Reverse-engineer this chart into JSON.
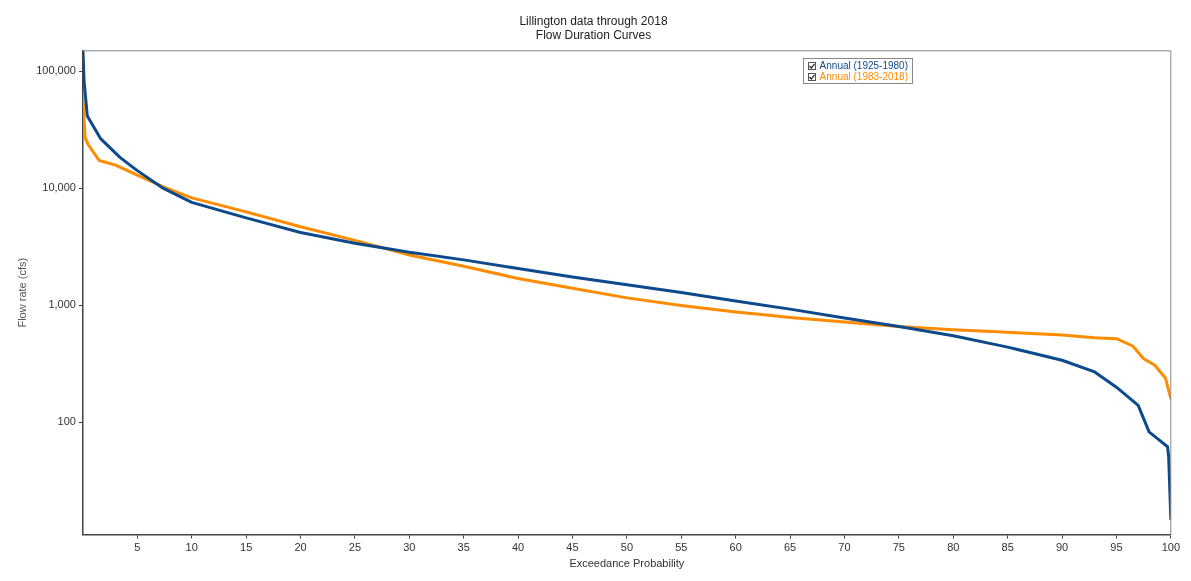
{
  "chart_data": {
    "type": "line",
    "title": "Lillington data through 2018",
    "subtitle": "Flow Duration Curves",
    "xlabel": "Exceedance Probability",
    "ylabel": "Flow rate (cfs)",
    "log": "y",
    "grid": false,
    "legend": "top right",
    "marker": "none",
    "line_style": "solid",
    "xlim": [
      0,
      100
    ],
    "xticks": [
      5,
      10,
      15,
      20,
      25,
      30,
      35,
      40,
      45,
      50,
      55,
      60,
      65,
      70,
      75,
      80,
      85,
      90,
      95,
      100
    ],
    "ylim": [
      11,
      150000
    ],
    "yticks": [
      {
        "value": 100,
        "label": "100"
      },
      {
        "value": 1000,
        "label": "1,000"
      },
      {
        "value": 10000,
        "label": "10,000"
      },
      {
        "value": 100000,
        "label": "100,000"
      }
    ],
    "series": [
      {
        "name": "Annual (1925-1980)",
        "color": "#0d4a8c",
        "x": [
          0,
          0.1,
          0.4,
          1.6,
          3.4,
          4.9,
          7.4,
          10,
          15,
          20,
          25,
          30,
          35,
          40,
          45,
          50,
          55,
          60,
          65,
          70,
          75,
          80,
          85,
          90,
          93,
          95,
          97,
          98,
          99,
          99.7,
          99.8,
          100
        ],
        "values": [
          150000,
          83000,
          41500,
          26800,
          18400,
          14400,
          10000,
          7600,
          5600,
          4200,
          3400,
          2850,
          2450,
          2070,
          1750,
          1500,
          1290,
          1090,
          930,
          780,
          660,
          550,
          440,
          340,
          270,
          200,
          140,
          83,
          70,
          62,
          51,
          15
        ]
      },
      {
        "name": "Annual (1983-2018)",
        "color": "#ff8c00",
        "x": [
          0,
          0.2,
          0.5,
          1.5,
          3,
          5,
          7.5,
          10,
          15,
          20,
          25,
          30,
          35,
          40,
          45,
          50,
          55,
          60,
          65,
          70,
          75,
          80,
          85,
          90,
          93,
          95,
          96.5,
          97.5,
          98.5,
          99.5,
          100
        ],
        "values": [
          57000,
          27000,
          23500,
          17300,
          15800,
          13000,
          10200,
          8300,
          6300,
          4700,
          3600,
          2700,
          2160,
          1700,
          1400,
          1160,
          1000,
          880,
          790,
          720,
          660,
          620,
          590,
          560,
          530,
          520,
          450,
          350,
          310,
          240,
          160
        ]
      }
    ]
  }
}
